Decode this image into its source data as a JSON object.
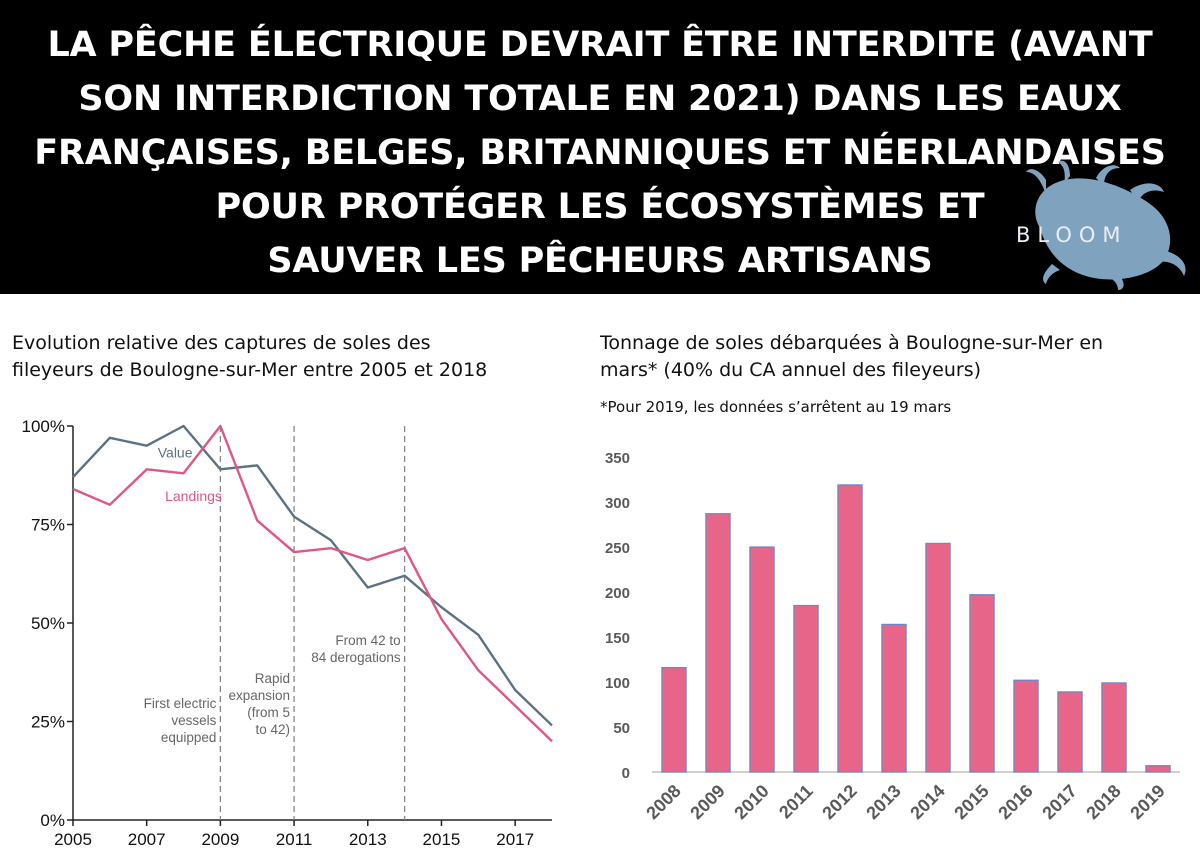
{
  "banner": {
    "title_lines": [
      "LA PÊCHE ÉLECTRIQUE DEVRAIT ÊTRE INTERDITE (AVANT",
      "SON INTERDICTION TOTALE EN 2021) DANS LES EAUX",
      "FRANÇAISES, BELGES, BRITANNIQUES ET NÉERLANDAISES",
      "POUR PROTÉGER LES ÉCOSYSTÈMES ET",
      "SAUVER LES PÊCHEURS ARTISANS"
    ],
    "logo_text": "BLOOM",
    "logo_icon": "squid-logo-icon"
  },
  "chart_data": [
    {
      "type": "line",
      "title_lines": [
        "Evolution relative des captures de soles des",
        "fileyeurs de Boulogne-sur-Mer entre 2005 et 2018"
      ],
      "x": [
        2005,
        2006,
        2007,
        2008,
        2009,
        2010,
        2011,
        2012,
        2013,
        2014,
        2015,
        2016,
        2017,
        2018
      ],
      "xticks": [
        2005,
        2007,
        2009,
        2011,
        2013,
        2015,
        2017
      ],
      "xticklabels": [
        "2005",
        "2007",
        "2009",
        "2011",
        "2013",
        "2015",
        "2017"
      ],
      "xlim": [
        2005,
        2018
      ],
      "ylim": [
        0,
        100
      ],
      "yticks": [
        0,
        25,
        50,
        75,
        100
      ],
      "yticklabels": [
        "0%",
        "25%",
        "50%",
        "75%",
        "100%"
      ],
      "series": [
        {
          "name": "Value",
          "color": "#5b7186",
          "values": [
            87,
            97,
            95,
            100,
            89,
            90,
            77,
            71,
            59,
            62,
            54,
            47,
            33,
            24
          ]
        },
        {
          "name": "Landings",
          "color": "#e0577f",
          "values": [
            84,
            80,
            89,
            88,
            100,
            76,
            68,
            69,
            66,
            69,
            51,
            38,
            29,
            20
          ]
        }
      ],
      "vlines": [
        2009,
        2011,
        2014
      ],
      "annotations": [
        {
          "x": 2009,
          "lines": [
            "First electric",
            "vessels",
            "equipped"
          ]
        },
        {
          "x": 2011,
          "lines": [
            "Rapid",
            "expansion",
            "(from 5",
            "to 42)"
          ]
        },
        {
          "x": 2014,
          "lines": [
            "From 42 to",
            "84 derogations"
          ]
        }
      ],
      "grid": false
    },
    {
      "type": "bar",
      "title_lines": [
        "Tonnage de soles débarquées à Boulogne-sur-Mer en",
        "mars* (40% du CA annuel des fileyeurs)"
      ],
      "note": "*Pour 2019, les données s’arrêtent au 19 mars",
      "categories": [
        "2008",
        "2009",
        "2010",
        "2011",
        "2012",
        "2013",
        "2014",
        "2015",
        "2016",
        "2017",
        "2018",
        "2019"
      ],
      "values": [
        116,
        287,
        250,
        185,
        319,
        164,
        254,
        197,
        102,
        89,
        99,
        7
      ],
      "ylim": [
        0,
        350
      ],
      "yticks": [
        0,
        50,
        100,
        150,
        200,
        250,
        300,
        350
      ],
      "yticklabels": [
        "0",
        "50",
        "100",
        "150",
        "200",
        "250",
        "300",
        "350"
      ],
      "bar_color": "#e8658a",
      "bar_edge": "#6b86c8",
      "grid": false
    }
  ]
}
